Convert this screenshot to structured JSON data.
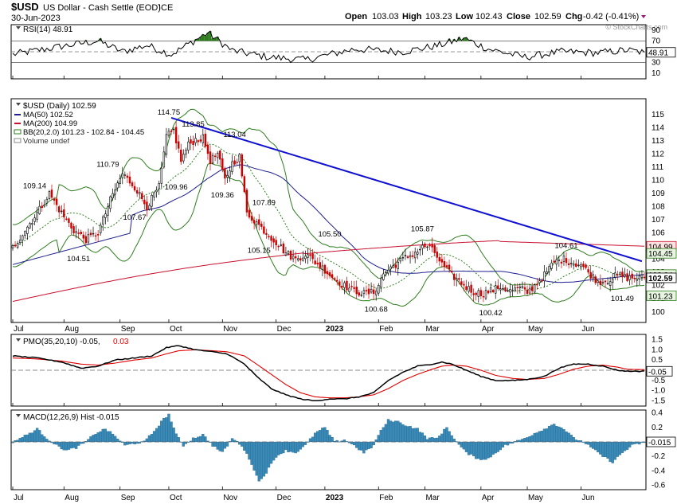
{
  "header": {
    "symbol": "$USD",
    "name": "US Dollar - Cash Settle (EOD)",
    "exchange": "ICE",
    "date": "30-Jun-2023",
    "open_label": "Open",
    "open": "103.03",
    "high_label": "High",
    "high": "103.23",
    "low_label": "Low",
    "low": "102.43",
    "close_label": "Close",
    "close": "102.59",
    "chg_label": "Chg",
    "chg": "-0.42 (-0.41%)",
    "watermark": "© StockCharts.com"
  },
  "colors": {
    "up": "#000000",
    "down": "#cc0000",
    "ma50": "#1f1f8f",
    "ma200": "#c8102e",
    "bb": "#2e7d1e",
    "trend": "#1010d0",
    "pmo": "#000000",
    "pmo_signal": "#e00000",
    "hist": "#3a8ab8"
  },
  "chart_data": [
    {
      "type": "line",
      "panel": "rsi",
      "legend": "RSI(14) 48.91",
      "last_value": "48.91",
      "ylim": [
        0,
        100
      ],
      "yticks": [
        10,
        30,
        50,
        70,
        90
      ],
      "levels": [
        30,
        70
      ],
      "anchors": [
        [
          0,
          45
        ],
        [
          20,
          60
        ],
        [
          35,
          70
        ],
        [
          45,
          50
        ],
        [
          55,
          62
        ],
        [
          65,
          45
        ],
        [
          75,
          72
        ],
        [
          80,
          85
        ],
        [
          90,
          52
        ],
        [
          105,
          40
        ],
        [
          120,
          35
        ],
        [
          140,
          55
        ],
        [
          160,
          50
        ],
        [
          175,
          62
        ],
        [
          185,
          75
        ],
        [
          195,
          55
        ],
        [
          210,
          40
        ],
        [
          225,
          50
        ],
        [
          240,
          48
        ],
        [
          252,
          53
        ],
        [
          260,
          48
        ]
      ]
    },
    {
      "type": "candlestick",
      "panel": "price",
      "legend": [
        "$USD (Daily) 102.59",
        "MA(50) 102.52",
        "MA(200) 104.99",
        "BB(20,2.0) 101.23 - 102.84 - 104.45",
        "Volume undef"
      ],
      "ylim": [
        99.2,
        116.2
      ],
      "yticks": [
        100,
        101,
        102,
        103,
        104,
        105,
        106,
        107,
        108,
        109,
        110,
        111,
        112,
        113,
        114,
        115
      ],
      "x_months": [
        "Jul",
        "Aug",
        "Sep",
        "Oct",
        "Nov",
        "Dec",
        "2023",
        "Feb",
        "Mar",
        "Apr",
        "May",
        "Jun"
      ],
      "x_month_index": [
        0,
        21,
        44,
        64,
        86,
        108,
        128,
        150,
        169,
        192,
        211,
        233
      ],
      "close_anchors": [
        [
          0,
          104.9
        ],
        [
          10,
          107.5
        ],
        [
          15,
          109.0
        ],
        [
          20,
          107.5
        ],
        [
          25,
          106.2
        ],
        [
          30,
          105.5
        ],
        [
          35,
          106.0
        ],
        [
          40,
          108.5
        ],
        [
          45,
          110.5
        ],
        [
          50,
          109.5
        ],
        [
          55,
          108.0
        ],
        [
          60,
          109.5
        ],
        [
          63,
          113.3
        ],
        [
          66,
          113.8
        ],
        [
          69,
          111.5
        ],
        [
          72,
          112.7
        ],
        [
          75,
          113.1
        ],
        [
          78,
          113.2
        ],
        [
          81,
          111.5
        ],
        [
          84,
          112.0
        ],
        [
          87,
          110.0
        ],
        [
          90,
          111.3
        ],
        [
          93,
          111.8
        ],
        [
          96,
          107.5
        ],
        [
          100,
          106.8
        ],
        [
          104,
          106.0
        ],
        [
          108,
          105.3
        ],
        [
          112,
          104.5
        ],
        [
          116,
          104.0
        ],
        [
          120,
          104.4
        ],
        [
          124,
          103.8
        ],
        [
          128,
          103.2
        ],
        [
          132,
          102.5
        ],
        [
          136,
          102.0
        ],
        [
          140,
          101.6
        ],
        [
          144,
          101.4
        ],
        [
          148,
          101.5
        ],
        [
          150,
          102.1
        ],
        [
          152,
          102.9
        ],
        [
          156,
          103.5
        ],
        [
          160,
          104.0
        ],
        [
          164,
          104.4
        ],
        [
          168,
          104.9
        ],
        [
          170,
          105.0
        ],
        [
          173,
          104.5
        ],
        [
          176,
          103.6
        ],
        [
          180,
          102.8
        ],
        [
          184,
          102.2
        ],
        [
          188,
          101.6
        ],
        [
          192,
          101.4
        ],
        [
          196,
          101.6
        ],
        [
          200,
          101.9
        ],
        [
          204,
          101.6
        ],
        [
          208,
          101.8
        ],
        [
          211,
          101.5
        ],
        [
          214,
          102.0
        ],
        [
          218,
          102.8
        ],
        [
          222,
          103.8
        ],
        [
          226,
          104.0
        ],
        [
          230,
          103.7
        ],
        [
          233,
          103.6
        ],
        [
          236,
          103.0
        ],
        [
          240,
          102.3
        ],
        [
          244,
          102.4
        ],
        [
          248,
          102.8
        ],
        [
          252,
          102.6
        ],
        [
          255,
          102.59
        ]
      ],
      "annotations": [
        {
          "i": 64,
          "v": 114.75,
          "text": "114.75",
          "pos": "above"
        },
        {
          "i": 74,
          "v": 113.85,
          "text": "113.85",
          "pos": "above"
        },
        {
          "i": 91,
          "v": 113.04,
          "text": "113.04",
          "pos": "above"
        },
        {
          "i": 39,
          "v": 110.79,
          "text": "110.79",
          "pos": "above"
        },
        {
          "i": 9,
          "v": 109.14,
          "text": "109.14",
          "pos": "above"
        },
        {
          "i": 67,
          "v": 109.96,
          "text": "109.96",
          "pos": "below"
        },
        {
          "i": 86,
          "v": 109.36,
          "text": "109.36",
          "pos": "below"
        },
        {
          "i": 50,
          "v": 107.67,
          "text": "107.67",
          "pos": "below"
        },
        {
          "i": 103,
          "v": 107.89,
          "text": "107.89",
          "pos": "above"
        },
        {
          "i": 27,
          "v": 104.51,
          "text": "104.51",
          "pos": "below"
        },
        {
          "i": 130,
          "v": 105.5,
          "text": "105.50",
          "pos": "above"
        },
        {
          "i": 101,
          "v": 105.15,
          "text": "105.15",
          "pos": "below"
        },
        {
          "i": 168,
          "v": 105.87,
          "text": "105.87",
          "pos": "above"
        },
        {
          "i": 149,
          "v": 100.68,
          "text": "100.68",
          "pos": "below"
        },
        {
          "i": 196,
          "v": 100.42,
          "text": "100.42",
          "pos": "below"
        },
        {
          "i": 227,
          "v": 104.61,
          "text": "104.61",
          "pos": "above"
        },
        {
          "i": 250,
          "v": 101.49,
          "text": "101.49",
          "pos": "below"
        }
      ],
      "trendline": [
        [
          65,
          114.75
        ],
        [
          258,
          103.85
        ]
      ],
      "right_labels": [
        {
          "v": 104.99,
          "text": "104.99",
          "bg": "#ffe0e0",
          "border": "#c8102e"
        },
        {
          "v": 104.45,
          "text": "104.45",
          "bg": "#e8f5e0",
          "border": "#2e7d1e"
        },
        {
          "v": 102.84,
          "text": "102.84",
          "bg": "#e8f5e0",
          "border": "#2e7d1e"
        },
        {
          "v": 102.59,
          "text": "102.59",
          "bg": "#ffffff",
          "border": "#000000",
          "bold": true
        },
        {
          "v": 101.23,
          "text": "101.23",
          "bg": "#e8f5e0",
          "border": "#2e7d1e"
        }
      ]
    },
    {
      "type": "line",
      "panel": "pmo",
      "legend_main": "PMO(35,20,10) -0.05,",
      "legend_signal": "0.03",
      "last_value": "-0.05",
      "ylim": [
        -1.75,
        1.75
      ],
      "yticks": [
        1.5,
        1.0,
        0.5,
        0.0,
        -0.5,
        -1.0,
        -1.5
      ],
      "ytick_labels": [
        "1.5",
        "1.0",
        "0.5",
        "0.0",
        "-0.5",
        "-1.0",
        "-1.5"
      ],
      "pmo_anchors": [
        [
          0,
          0.7
        ],
        [
          10,
          0.6
        ],
        [
          20,
          0.4
        ],
        [
          28,
          0.1
        ],
        [
          35,
          0.2
        ],
        [
          42,
          0.5
        ],
        [
          50,
          0.6
        ],
        [
          57,
          0.7
        ],
        [
          63,
          1.1
        ],
        [
          68,
          1.2
        ],
        [
          75,
          1.0
        ],
        [
          82,
          0.9
        ],
        [
          88,
          0.8
        ],
        [
          95,
          0.3
        ],
        [
          100,
          -0.3
        ],
        [
          106,
          -0.9
        ],
        [
          112,
          -1.2
        ],
        [
          118,
          -1.4
        ],
        [
          124,
          -1.5
        ],
        [
          130,
          -1.4
        ],
        [
          136,
          -1.4
        ],
        [
          142,
          -1.3
        ],
        [
          148,
          -1.1
        ],
        [
          154,
          -0.5
        ],
        [
          160,
          -0.1
        ],
        [
          166,
          0.2
        ],
        [
          172,
          0.3
        ],
        [
          176,
          0.4
        ],
        [
          180,
          0.3
        ],
        [
          186,
          0.0
        ],
        [
          192,
          -0.3
        ],
        [
          198,
          -0.5
        ],
        [
          205,
          -0.5
        ],
        [
          211,
          -0.45
        ],
        [
          218,
          -0.3
        ],
        [
          224,
          0.1
        ],
        [
          230,
          0.3
        ],
        [
          236,
          0.3
        ],
        [
          242,
          0.2
        ],
        [
          248,
          0.0
        ],
        [
          252,
          -0.05
        ],
        [
          258,
          -0.05
        ]
      ],
      "signal_anchors": [
        [
          0,
          0.6
        ],
        [
          10,
          0.55
        ],
        [
          20,
          0.45
        ],
        [
          28,
          0.3
        ],
        [
          35,
          0.25
        ],
        [
          42,
          0.35
        ],
        [
          50,
          0.5
        ],
        [
          57,
          0.6
        ],
        [
          63,
          0.8
        ],
        [
          68,
          0.95
        ],
        [
          75,
          1.0
        ],
        [
          82,
          0.95
        ],
        [
          88,
          0.9
        ],
        [
          95,
          0.7
        ],
        [
          100,
          0.3
        ],
        [
          106,
          -0.2
        ],
        [
          112,
          -0.7
        ],
        [
          118,
          -1.1
        ],
        [
          124,
          -1.3
        ],
        [
          130,
          -1.35
        ],
        [
          136,
          -1.35
        ],
        [
          142,
          -1.3
        ],
        [
          148,
          -1.2
        ],
        [
          154,
          -0.9
        ],
        [
          160,
          -0.5
        ],
        [
          166,
          -0.2
        ],
        [
          172,
          0.05
        ],
        [
          176,
          0.2
        ],
        [
          180,
          0.25
        ],
        [
          186,
          0.2
        ],
        [
          192,
          0.0
        ],
        [
          198,
          -0.25
        ],
        [
          205,
          -0.4
        ],
        [
          211,
          -0.45
        ],
        [
          218,
          -0.4
        ],
        [
          224,
          -0.2
        ],
        [
          230,
          0.05
        ],
        [
          236,
          0.2
        ],
        [
          242,
          0.25
        ],
        [
          248,
          0.15
        ],
        [
          252,
          0.05
        ],
        [
          258,
          0.03
        ]
      ]
    },
    {
      "type": "bar",
      "panel": "macd_hist",
      "legend": "MACD(12,26,9) Hist -0.015",
      "last_value": "-0.015",
      "ylim": [
        -0.66,
        0.44
      ],
      "yticks": [
        0.4,
        0.2,
        0.0,
        -0.2,
        -0.4,
        -0.6
      ],
      "ytick_labels": [
        "0.4",
        "0.2",
        "0.0",
        "-0.2",
        "-0.4",
        "-0.6"
      ],
      "hist_anchors": [
        [
          0,
          0.0
        ],
        [
          6,
          0.1
        ],
        [
          10,
          0.18
        ],
        [
          14,
          0.05
        ],
        [
          18,
          -0.05
        ],
        [
          22,
          -0.12
        ],
        [
          26,
          -0.08
        ],
        [
          30,
          0.0
        ],
        [
          34,
          0.12
        ],
        [
          38,
          0.18
        ],
        [
          42,
          0.08
        ],
        [
          46,
          -0.05
        ],
        [
          50,
          -0.02
        ],
        [
          54,
          0.0
        ],
        [
          58,
          0.15
        ],
        [
          62,
          0.32
        ],
        [
          64,
          0.38
        ],
        [
          67,
          0.1
        ],
        [
          70,
          -0.05
        ],
        [
          74,
          0.05
        ],
        [
          78,
          0.1
        ],
        [
          82,
          -0.05
        ],
        [
          86,
          -0.15
        ],
        [
          90,
          0.05
        ],
        [
          94,
          -0.05
        ],
        [
          98,
          -0.3
        ],
        [
          101,
          -0.55
        ],
        [
          104,
          -0.42
        ],
        [
          108,
          -0.2
        ],
        [
          112,
          -0.12
        ],
        [
          116,
          -0.15
        ],
        [
          120,
          -0.05
        ],
        [
          124,
          0.12
        ],
        [
          128,
          0.2
        ],
        [
          132,
          0.0
        ],
        [
          136,
          0.03
        ],
        [
          140,
          -0.05
        ],
        [
          144,
          -0.15
        ],
        [
          148,
          -0.05
        ],
        [
          150,
          0.1
        ],
        [
          154,
          0.3
        ],
        [
          158,
          0.28
        ],
        [
          162,
          0.22
        ],
        [
          166,
          0.18
        ],
        [
          170,
          0.05
        ],
        [
          174,
          0.05
        ],
        [
          178,
          0.2
        ],
        [
          182,
          0.0
        ],
        [
          186,
          -0.15
        ],
        [
          190,
          -0.22
        ],
        [
          194,
          -0.25
        ],
        [
          198,
          -0.15
        ],
        [
          202,
          -0.05
        ],
        [
          206,
          0.0
        ],
        [
          210,
          0.05
        ],
        [
          214,
          0.12
        ],
        [
          218,
          0.18
        ],
        [
          222,
          0.25
        ],
        [
          226,
          0.18
        ],
        [
          230,
          0.05
        ],
        [
          234,
          0.0
        ],
        [
          238,
          -0.1
        ],
        [
          242,
          -0.2
        ],
        [
          246,
          -0.28
        ],
        [
          250,
          -0.15
        ],
        [
          254,
          -0.05
        ],
        [
          258,
          -0.015
        ]
      ]
    }
  ]
}
